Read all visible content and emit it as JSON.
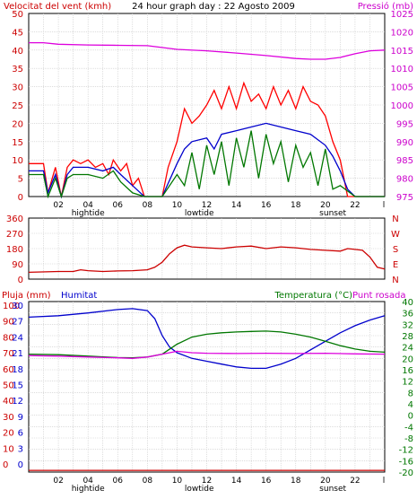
{
  "chart_data": [
    {
      "type": "line",
      "panel": "wind-pressure",
      "title": "24 hour graph day : 22 Agosto 2009",
      "left_label": "Velocitat del vent (kmh)",
      "right_label": "Pressió (mb)",
      "left_ticks": [
        "0",
        "5",
        "10",
        "15",
        "20",
        "25",
        "30",
        "35",
        "40",
        "45",
        "50"
      ],
      "right_ticks": [
        "975",
        "980",
        "985",
        "990",
        "995",
        "1000",
        "1005",
        "1010",
        "1015",
        "1020",
        "1025"
      ],
      "ylim_left": [
        0,
        50
      ],
      "ylim_right": [
        975,
        1025
      ],
      "x_ticks": [
        "02",
        "04",
        "06",
        "08",
        "10",
        "12",
        "14",
        "16",
        "18",
        "20",
        "22"
      ],
      "x_marker": "l",
      "x_events": [
        {
          "hour": 4,
          "label": "hightide"
        },
        {
          "hour": 11.5,
          "label": "lowtide"
        },
        {
          "hour": 20.5,
          "label": "sunset"
        }
      ],
      "series": [
        {
          "color": "#dd00dd",
          "axis": "right",
          "x": [
            0,
            1,
            2,
            4,
            6,
            8,
            10,
            12,
            14,
            16,
            18,
            19,
            20,
            21,
            22,
            23,
            24
          ],
          "values": [
            1017,
            1017,
            1016.6,
            1016.4,
            1016.3,
            1016.2,
            1015.2,
            1014.8,
            1014.2,
            1013.5,
            1012.7,
            1012.5,
            1012.5,
            1013,
            1014,
            1014.8,
            1015
          ]
        },
        {
          "color": "#ff0000",
          "axis": "left",
          "x": [
            0,
            1,
            1.3,
            1.8,
            2.2,
            2.6,
            3.0,
            3.5,
            4,
            4.5,
            5,
            5.4,
            5.7,
            6.2,
            6.6,
            7,
            7.4,
            7.8,
            8.3,
            9,
            9.4,
            10,
            10.5,
            11,
            11.5,
            12,
            12.5,
            13,
            13.5,
            14,
            14.5,
            15,
            15.5,
            16,
            16.5,
            17,
            17.5,
            18,
            18.5,
            19,
            19.5,
            20,
            20.5,
            21,
            21.2,
            21.5,
            22,
            23,
            24
          ],
          "values": [
            9,
            9,
            1,
            8,
            0,
            8,
            10,
            9,
            10,
            8,
            9,
            6,
            10,
            7,
            9,
            3,
            5,
            0,
            0,
            0,
            8,
            15,
            24,
            20,
            22,
            25,
            29,
            24,
            30,
            24,
            31,
            26,
            28,
            24,
            30,
            25,
            29,
            24,
            30,
            26,
            25,
            22,
            15,
            10,
            6,
            0,
            0,
            0,
            0
          ]
        },
        {
          "color": "#0000cc",
          "axis": "left",
          "x": [
            0,
            1,
            1.3,
            1.8,
            2.2,
            2.6,
            3.0,
            4,
            5,
            5.7,
            6.2,
            7,
            7.8,
            8.3,
            9,
            10,
            10.5,
            11,
            12,
            12.5,
            13,
            14,
            15,
            16,
            17,
            18,
            19,
            20,
            20.5,
            21,
            21.5,
            22,
            23,
            24
          ],
          "values": [
            7,
            7,
            1,
            6,
            0,
            6,
            8,
            8,
            7,
            8,
            6,
            3,
            0,
            0,
            0,
            9,
            13,
            15,
            16,
            13,
            17,
            18,
            19,
            20,
            19,
            18,
            17,
            14,
            11,
            7,
            2,
            0,
            0,
            0
          ]
        },
        {
          "color": "#007700",
          "axis": "left",
          "x": [
            0,
            1,
            1.3,
            1.8,
            2.2,
            2.6,
            3.0,
            4,
            5,
            5.7,
            6.2,
            7,
            7.8,
            8.3,
            9,
            10,
            10.5,
            11,
            11.5,
            12,
            12.5,
            13,
            13.5,
            14,
            14.5,
            15,
            15.5,
            16,
            16.5,
            17,
            17.5,
            18,
            18.5,
            19,
            19.5,
            20,
            20.5,
            21,
            22,
            23,
            24
          ],
          "values": [
            6,
            6,
            0,
            5,
            0,
            5,
            6,
            6,
            5,
            7,
            4,
            1,
            0,
            0,
            0,
            6,
            3,
            12,
            2,
            14,
            6,
            15,
            3,
            16,
            8,
            18,
            5,
            17,
            9,
            15,
            4,
            14,
            8,
            12,
            3,
            13,
            2,
            3,
            0,
            0,
            0
          ]
        }
      ]
    },
    {
      "type": "line",
      "panel": "wind-direction",
      "left_ticks": [
        "0",
        "90",
        "180",
        "270",
        "360"
      ],
      "ylim": [
        0,
        360
      ],
      "right_letters": [
        "N",
        "W",
        "S",
        "E",
        "N"
      ],
      "series": [
        {
          "color": "#cc0000",
          "x": [
            0,
            2,
            3,
            3.5,
            4,
            5,
            6,
            7,
            8,
            8.5,
            9,
            9.5,
            10,
            10.5,
            11,
            12,
            13,
            14,
            15,
            16,
            17,
            18,
            19,
            20,
            21,
            21.5,
            22,
            22.5,
            23,
            23.5,
            24
          ],
          "values": [
            40,
            45,
            45,
            55,
            50,
            45,
            48,
            50,
            55,
            70,
            100,
            150,
            185,
            200,
            190,
            185,
            180,
            190,
            195,
            180,
            190,
            185,
            175,
            170,
            165,
            180,
            175,
            170,
            130,
            70,
            60
          ]
        }
      ]
    },
    {
      "type": "line",
      "panel": "rain-humidity-temperature",
      "left_label": "Pluja (mm)",
      "humidity_label": "Humitat",
      "right_label": "Temperatura (°C)",
      "right_label_2": "Punt rosada",
      "rain_ticks": [
        "0",
        "10",
        "20",
        "30",
        "40",
        "50",
        "60",
        "70",
        "80",
        "90",
        "100"
      ],
      "humidity_ticks": [
        "0",
        "3",
        "6",
        "9",
        "12",
        "15",
        "18",
        "21",
        "24",
        "27",
        "30"
      ],
      "temp_ticks": [
        "-20",
        "-16",
        "-12",
        "-8",
        "-4",
        "0",
        "4",
        "8",
        "12",
        "16",
        "20",
        "24",
        "28",
        "32",
        "36",
        "40"
      ],
      "ylim_temp": [
        -20,
        40
      ],
      "series": [
        {
          "name": "Pluja",
          "color": "#cc0000",
          "axis": "temp",
          "x": [
            0,
            24
          ],
          "values": [
            -19.4,
            -19.4
          ]
        },
        {
          "name": "Humitat",
          "color": "#0000cc",
          "axis": "temp",
          "x": [
            0,
            2,
            4,
            6,
            7,
            8,
            8.5,
            9,
            9.5,
            10,
            11,
            12,
            13,
            14,
            15,
            16,
            17,
            18,
            19,
            20,
            21,
            22,
            23,
            24
          ],
          "values": [
            34.5,
            35.0,
            36.0,
            37.2,
            37.5,
            36.8,
            34,
            28,
            24,
            22,
            20,
            19,
            18,
            17,
            16.5,
            16.5,
            18,
            20,
            23,
            26,
            29,
            31.5,
            33.5,
            35
          ]
        },
        {
          "name": "Temperatura",
          "color": "#007700",
          "axis": "temp",
          "x": [
            0,
            2,
            4,
            6,
            7,
            8,
            9,
            10,
            11,
            12,
            13,
            14,
            15,
            16,
            17,
            18,
            19,
            20,
            21,
            22,
            23,
            24
          ],
          "values": [
            21.5,
            21.3,
            20.8,
            20.3,
            20.2,
            20.5,
            21.5,
            25,
            27.5,
            28.5,
            29.0,
            29.3,
            29.5,
            29.6,
            29.3,
            28.5,
            27.5,
            26,
            24.5,
            23.3,
            22.5,
            22.2
          ]
        },
        {
          "name": "Punt rosada",
          "color": "#dd00dd",
          "axis": "temp",
          "x": [
            0,
            2,
            4,
            6,
            7,
            8,
            9,
            10,
            11,
            12,
            14,
            16,
            18,
            20,
            22,
            24
          ],
          "values": [
            21,
            20.8,
            20.5,
            20.2,
            20.0,
            20.5,
            21.5,
            22.5,
            22.0,
            21.8,
            21.7,
            21.8,
            21.7,
            21.8,
            21.6,
            21.5
          ]
        }
      ]
    }
  ]
}
